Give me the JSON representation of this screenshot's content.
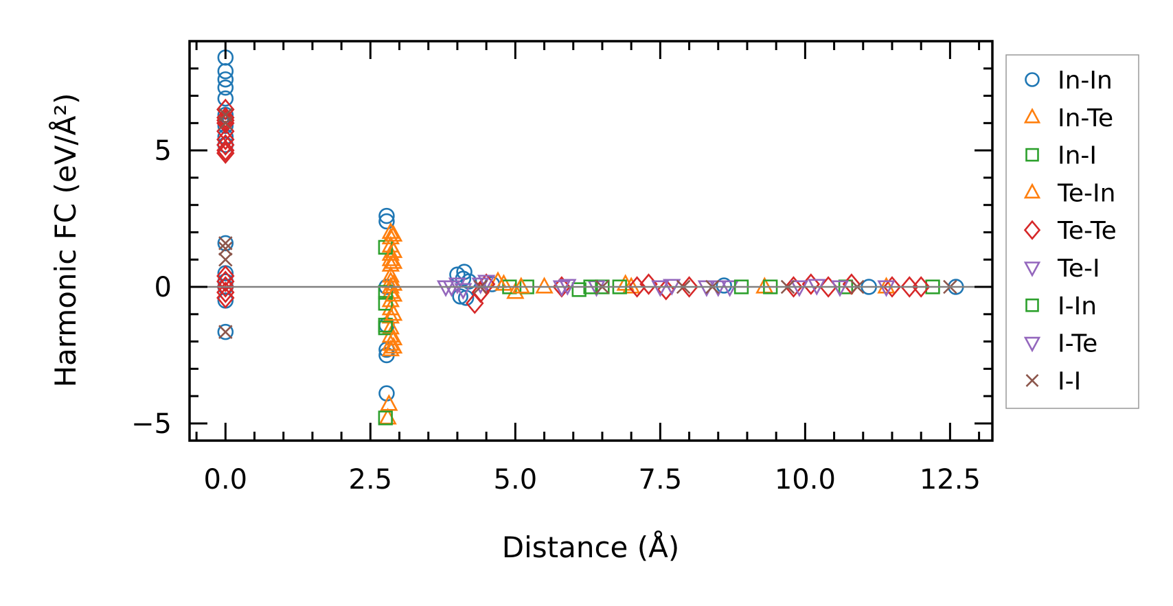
{
  "chart_data": {
    "type": "scatter",
    "title": "",
    "xlabel": "Distance (Å)",
    "ylabel": "Harmonic FC (eV/Å²)",
    "xlim": [
      -0.62,
      13.23
    ],
    "ylim": [
      -5.63,
      9.0
    ],
    "xticks": [
      0.0,
      2.5,
      5.0,
      7.5,
      10.0,
      12.5
    ],
    "xtick_labels": [
      "0.0",
      "2.5",
      "5.0",
      "7.5",
      "10.0",
      "12.5"
    ],
    "yticks": [
      -5,
      0,
      5
    ],
    "ytick_labels": [
      "−5",
      "0",
      "5"
    ],
    "reference_line_y": 0,
    "grid": false,
    "legend_placement": "outside-right",
    "series": [
      {
        "name": "In-In",
        "marker": "circle",
        "color": "#1f77b4",
        "points": [
          [
            0,
            8.4
          ],
          [
            0,
            7.9
          ],
          [
            0,
            7.6
          ],
          [
            0,
            7.3
          ],
          [
            0,
            6.9
          ],
          [
            0,
            6.3
          ],
          [
            0,
            5.9
          ],
          [
            0,
            5.5
          ],
          [
            0,
            5.2
          ],
          [
            0,
            1.6
          ],
          [
            0,
            0.5
          ],
          [
            0,
            0.2
          ],
          [
            0,
            0
          ],
          [
            0,
            -0.5
          ],
          [
            0,
            -1.65
          ],
          [
            2.78,
            2.6
          ],
          [
            2.78,
            2.4
          ],
          [
            2.78,
            0
          ],
          [
            2.78,
            -1.4
          ],
          [
            2.78,
            -2.3
          ],
          [
            2.78,
            -2.5
          ],
          [
            2.78,
            -3.9
          ],
          [
            4.0,
            0.45
          ],
          [
            4.05,
            -0.35
          ],
          [
            4.1,
            0.3
          ],
          [
            4.15,
            -0.4
          ],
          [
            4.12,
            0.55
          ],
          [
            4.2,
            0.2
          ],
          [
            4.6,
            0.1
          ],
          [
            8.6,
            0.05
          ],
          [
            11.1,
            0
          ],
          [
            12.6,
            0
          ]
        ]
      },
      {
        "name": "In-Te",
        "marker": "triangle-up",
        "color": "#ff7f0e",
        "points": [
          [
            2.85,
            2.0
          ],
          [
            2.85,
            1.8
          ],
          [
            2.85,
            1.5
          ],
          [
            2.85,
            1.2
          ],
          [
            2.85,
            1.0
          ],
          [
            2.85,
            0.8
          ],
          [
            2.85,
            0.4
          ],
          [
            2.85,
            0.2
          ],
          [
            2.85,
            0
          ],
          [
            2.85,
            -0.2
          ],
          [
            2.85,
            -0.5
          ],
          [
            2.85,
            -0.8
          ],
          [
            2.85,
            -1.1
          ],
          [
            2.85,
            -1.5
          ],
          [
            2.85,
            -1.8
          ],
          [
            2.85,
            -2.1
          ],
          [
            2.85,
            -2.3
          ],
          [
            2.82,
            -4.3
          ],
          [
            2.8,
            -4.8
          ],
          [
            4.8,
            0.1
          ],
          [
            5.0,
            -0.2
          ],
          [
            5.5,
            0
          ],
          [
            6.9,
            0.1
          ],
          [
            9.3,
            0
          ],
          [
            11.4,
            0
          ]
        ]
      },
      {
        "name": "In-I",
        "marker": "square",
        "color": "#2ca02c",
        "points": [
          [
            2.76,
            1.45
          ],
          [
            2.76,
            -0.2
          ],
          [
            2.76,
            -0.6
          ],
          [
            2.76,
            -1.4
          ],
          [
            2.76,
            -1.5
          ],
          [
            2.76,
            -4.8
          ],
          [
            4.9,
            0
          ],
          [
            5.2,
            0
          ],
          [
            6.1,
            -0.1
          ],
          [
            6.5,
            0
          ],
          [
            9.4,
            0
          ],
          [
            10.7,
            0
          ],
          [
            12.2,
            0
          ]
        ]
      },
      {
        "name": "Te-In",
        "marker": "triangle-up",
        "color": "#ff7f0e",
        "points": [
          [
            2.9,
            1.9
          ],
          [
            2.9,
            1.3
          ],
          [
            2.9,
            0.9
          ],
          [
            2.9,
            0.1
          ],
          [
            2.9,
            -0.3
          ],
          [
            2.9,
            -1.0
          ],
          [
            2.9,
            -1.9
          ],
          [
            2.9,
            -2.2
          ],
          [
            4.7,
            0.2
          ],
          [
            5.1,
            0
          ],
          [
            7.0,
            0
          ]
        ]
      },
      {
        "name": "Te-Te",
        "marker": "diamond",
        "color": "#d62728",
        "points": [
          [
            0,
            6.5
          ],
          [
            0,
            6.2
          ],
          [
            0,
            6.1
          ],
          [
            0,
            6.0
          ],
          [
            0,
            5.7
          ],
          [
            0,
            5.4
          ],
          [
            0,
            5.2
          ],
          [
            0,
            5.0
          ],
          [
            0,
            4.9
          ],
          [
            0,
            0.4
          ],
          [
            0,
            0.2
          ],
          [
            0,
            0
          ],
          [
            0,
            -0.2
          ],
          [
            0,
            -0.4
          ],
          [
            4.3,
            -0.6
          ],
          [
            4.4,
            -0.2
          ],
          [
            4.5,
            0.1
          ],
          [
            5.8,
            0
          ],
          [
            7.1,
            0
          ],
          [
            7.3,
            0.1
          ],
          [
            7.6,
            -0.1
          ],
          [
            8.0,
            0
          ],
          [
            9.8,
            0
          ],
          [
            10.1,
            0.1
          ],
          [
            10.4,
            0
          ],
          [
            10.8,
            0.1
          ],
          [
            11.5,
            0
          ],
          [
            11.8,
            0
          ],
          [
            12.0,
            0
          ]
        ]
      },
      {
        "name": "Te-I",
        "marker": "triangle-down",
        "color": "#9467bd",
        "points": [
          [
            3.8,
            0
          ],
          [
            3.9,
            0
          ],
          [
            4.0,
            0.1
          ],
          [
            4.4,
            0.1
          ],
          [
            4.5,
            0.2
          ],
          [
            5.9,
            0.05
          ],
          [
            6.4,
            0
          ],
          [
            7.5,
            0
          ],
          [
            8.3,
            0
          ],
          [
            8.7,
            0
          ],
          [
            10.2,
            0.05
          ],
          [
            11.4,
            0
          ]
        ]
      },
      {
        "name": "I-In",
        "marker": "square",
        "color": "#2ca02c",
        "points": [
          [
            6.3,
            0
          ],
          [
            6.8,
            0
          ],
          [
            8.9,
            0
          ]
        ]
      },
      {
        "name": "I-Te",
        "marker": "triangle-down",
        "color": "#9467bd",
        "points": [
          [
            4.1,
            -0.1
          ],
          [
            5.8,
            0
          ],
          [
            7.7,
            0.05
          ],
          [
            8.5,
            0
          ],
          [
            9.9,
            0
          ],
          [
            10.6,
            0
          ]
        ]
      },
      {
        "name": "I-I",
        "marker": "x",
        "color": "#8c564b",
        "points": [
          [
            0,
            6.3
          ],
          [
            0,
            6.0
          ],
          [
            0,
            1.6
          ],
          [
            0,
            1.4
          ],
          [
            0,
            1.0
          ],
          [
            0,
            -1.65
          ],
          [
            4.4,
            0
          ],
          [
            6.5,
            0
          ],
          [
            7.9,
            0
          ],
          [
            8.4,
            0
          ],
          [
            9.7,
            0
          ],
          [
            10.9,
            0
          ],
          [
            12.5,
            0
          ]
        ]
      }
    ]
  }
}
